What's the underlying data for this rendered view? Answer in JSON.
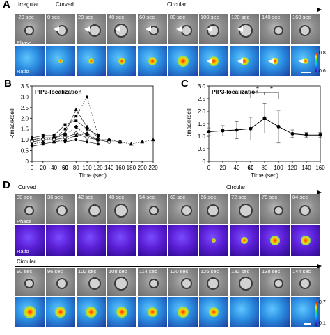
{
  "panels": {
    "a": "A",
    "b": "B",
    "c": "C",
    "d": "D"
  },
  "panelA": {
    "stage1": "Irregular",
    "stage2": "Curved",
    "stage3": "Circular",
    "times": [
      "-20 sec",
      "0 sec",
      "20 sec",
      "40 sec",
      "60 sec",
      "80 sec",
      "100 sec",
      "120 sec",
      "140 sec",
      "160 sec"
    ],
    "row1": "Phase",
    "row2": "Ratio",
    "colorbar": {
      "max": "0.8",
      "min": "0.6"
    }
  },
  "panelB": {
    "title": "PIP3-localization",
    "ylabel": "Rmac/Rcell",
    "xlabel": "Time (sec)",
    "yticks": [
      "0",
      "0.5",
      "1.0",
      "1.5",
      "2.0",
      "2.5",
      "3.0",
      "3.5"
    ],
    "xticks": [
      "0",
      "20",
      "40",
      "60",
      "80",
      "100",
      "120",
      "140",
      "160",
      "180",
      "200",
      "220"
    ]
  },
  "panelC": {
    "title": "PIP3-localization",
    "ylabel": "Rmac/Rcell",
    "xlabel": "Time (sec)",
    "yticks": [
      "0",
      "0.5",
      "1.0",
      "1.5",
      "2.0",
      "2.5",
      "3.0"
    ],
    "xticks": [
      "0",
      "20",
      "40",
      "60",
      "80",
      "100",
      "120",
      "140",
      "160"
    ],
    "stars": [
      "*",
      "*"
    ]
  },
  "panelD": {
    "stage1": "Curved",
    "stage2": "Circular",
    "timesTop": [
      "30 sec",
      "36 sec",
      "42 sec",
      "48 sec",
      "54 sec",
      "60 sec",
      "66 sec",
      "72 sec",
      "78 sec",
      "84 sec"
    ],
    "timesBottom": [
      "90 sec",
      "96 sec",
      "102 sec",
      "108 sec",
      "114 sec",
      "120 sec",
      "126 sec",
      "132 sec",
      "138 sec",
      "144 sec"
    ],
    "row1": "Phase",
    "row2": "Ratio",
    "label2": "Circular",
    "colorbar": {
      "max": "0.7",
      "min": "0.1"
    }
  },
  "chart_data": [
    {
      "type": "line",
      "title": "PIP3-localization",
      "xlabel": "Time (sec)",
      "ylabel": "Rmac/Rcell",
      "xlim": [
        0,
        220
      ],
      "ylim": [
        0,
        3.5
      ],
      "series": [
        {
          "x": [
            0,
            20,
            40,
            60,
            80,
            100,
            120
          ],
          "values": [
            1.0,
            1.1,
            1.1,
            1.3,
            2.4,
            1.6,
            1.1
          ]
        },
        {
          "x": [
            0,
            20,
            40,
            60,
            80,
            100,
            120
          ],
          "values": [
            1.0,
            1.0,
            1.0,
            1.5,
            2.1,
            3.0,
            1.2
          ]
        },
        {
          "x": [
            0,
            20,
            40,
            60,
            80,
            100,
            120
          ],
          "values": [
            1.1,
            1.2,
            1.2,
            1.7,
            1.9,
            1.5,
            1.2
          ]
        },
        {
          "x": [
            0,
            20,
            40,
            60,
            80,
            100,
            120,
            140
          ],
          "values": [
            1.0,
            1.0,
            1.1,
            1.2,
            1.6,
            1.2,
            1.0,
            1.0
          ]
        },
        {
          "x": [
            0,
            20,
            40,
            60,
            80,
            100,
            120,
            140,
            160
          ],
          "values": [
            0.9,
            1.0,
            1.0,
            1.1,
            1.3,
            1.1,
            1.0,
            0.9,
            0.9
          ]
        },
        {
          "x": [
            0,
            20,
            40,
            60,
            80,
            100,
            120,
            140,
            160,
            180,
            200,
            220
          ],
          "values": [
            0.8,
            0.9,
            0.9,
            1.0,
            1.2,
            1.3,
            1.0,
            1.0,
            0.9,
            0.8,
            0.9,
            1.0
          ]
        },
        {
          "x": [
            0,
            20,
            40,
            60,
            80,
            100,
            120
          ],
          "values": [
            0.7,
            0.8,
            0.9,
            0.9,
            1.0,
            0.9,
            0.8
          ]
        }
      ]
    },
    {
      "type": "line",
      "title": "PIP3-localization",
      "xlabel": "Time (sec)",
      "ylabel": "Rmac/Rcell",
      "xlim": [
        0,
        160
      ],
      "ylim": [
        0,
        3.0
      ],
      "x": [
        0,
        20,
        40,
        60,
        80,
        100,
        120,
        140,
        160
      ],
      "values": [
        1.18,
        1.22,
        1.25,
        1.3,
        1.72,
        1.38,
        1.1,
        1.05,
        1.05
      ],
      "error": [
        0.15,
        0.2,
        0.35,
        0.45,
        0.6,
        0.65,
        0.15,
        0.1,
        0.1
      ]
    }
  ]
}
